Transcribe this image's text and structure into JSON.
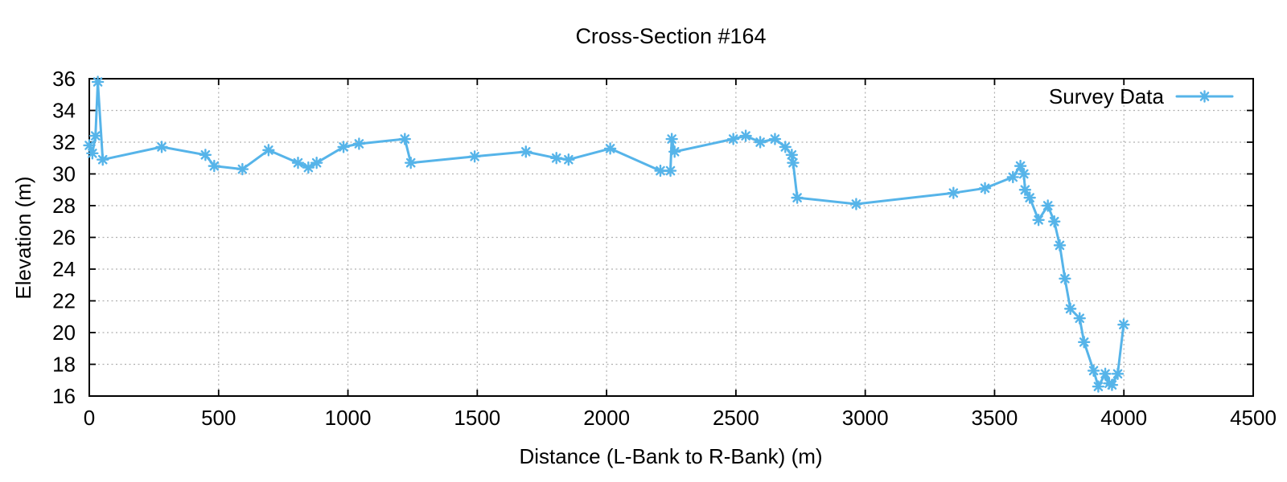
{
  "chart_data": {
    "type": "line",
    "title": "Cross-Section #164",
    "xlabel": "Distance (L-Bank to R-Bank) (m)",
    "ylabel": "Elevation (m)",
    "xlim": [
      0,
      4500
    ],
    "ylim": [
      16,
      36
    ],
    "xticks": [
      0,
      500,
      1000,
      1500,
      2000,
      2500,
      3000,
      3500,
      4000,
      4500
    ],
    "yticks": [
      16,
      18,
      20,
      22,
      24,
      26,
      28,
      30,
      32,
      34,
      36
    ],
    "grid": true,
    "legend_position": "top-right-inside",
    "series": [
      {
        "name": "Survey Data",
        "color": "#56b4e9",
        "marker": "asterisk",
        "points": [
          [
            0,
            31.8
          ],
          [
            12,
            31.3
          ],
          [
            24,
            32.4
          ],
          [
            33,
            35.8
          ],
          [
            52,
            30.9
          ],
          [
            280,
            31.7
          ],
          [
            449,
            31.2
          ],
          [
            483,
            30.5
          ],
          [
            592,
            30.3
          ],
          [
            693,
            31.5
          ],
          [
            807,
            30.7
          ],
          [
            847,
            30.4
          ],
          [
            879,
            30.7
          ],
          [
            983,
            31.7
          ],
          [
            1043,
            31.9
          ],
          [
            1220,
            32.2
          ],
          [
            1243,
            30.7
          ],
          [
            1490,
            31.1
          ],
          [
            1688,
            31.4
          ],
          [
            1806,
            31.0
          ],
          [
            1853,
            30.9
          ],
          [
            2014,
            31.6
          ],
          [
            2208,
            30.2
          ],
          [
            2247,
            30.2
          ],
          [
            2252,
            32.2
          ],
          [
            2263,
            31.4
          ],
          [
            2490,
            32.2
          ],
          [
            2538,
            32.4
          ],
          [
            2594,
            32.0
          ],
          [
            2651,
            32.2
          ],
          [
            2691,
            31.7
          ],
          [
            2716,
            31.2
          ],
          [
            2721,
            30.7
          ],
          [
            2737,
            28.5
          ],
          [
            2965,
            28.1
          ],
          [
            3341,
            28.8
          ],
          [
            3463,
            29.1
          ],
          [
            3571,
            29.8
          ],
          [
            3600,
            30.5
          ],
          [
            3613,
            30.0
          ],
          [
            3618,
            29.0
          ],
          [
            3636,
            28.5
          ],
          [
            3670,
            27.1
          ],
          [
            3706,
            28.0
          ],
          [
            3731,
            27.0
          ],
          [
            3752,
            25.5
          ],
          [
            3772,
            23.4
          ],
          [
            3793,
            21.5
          ],
          [
            3829,
            20.9
          ],
          [
            3846,
            19.4
          ],
          [
            3883,
            17.6
          ],
          [
            3901,
            16.6
          ],
          [
            3928,
            17.4
          ],
          [
            3943,
            16.8
          ],
          [
            3954,
            16.7
          ],
          [
            3976,
            17.4
          ],
          [
            3999,
            20.5
          ]
        ]
      }
    ]
  },
  "colors": {
    "series": "#56b4e9",
    "grid": "#b0b0b0",
    "text": "#000000",
    "border": "#000000",
    "background": "#ffffff"
  }
}
